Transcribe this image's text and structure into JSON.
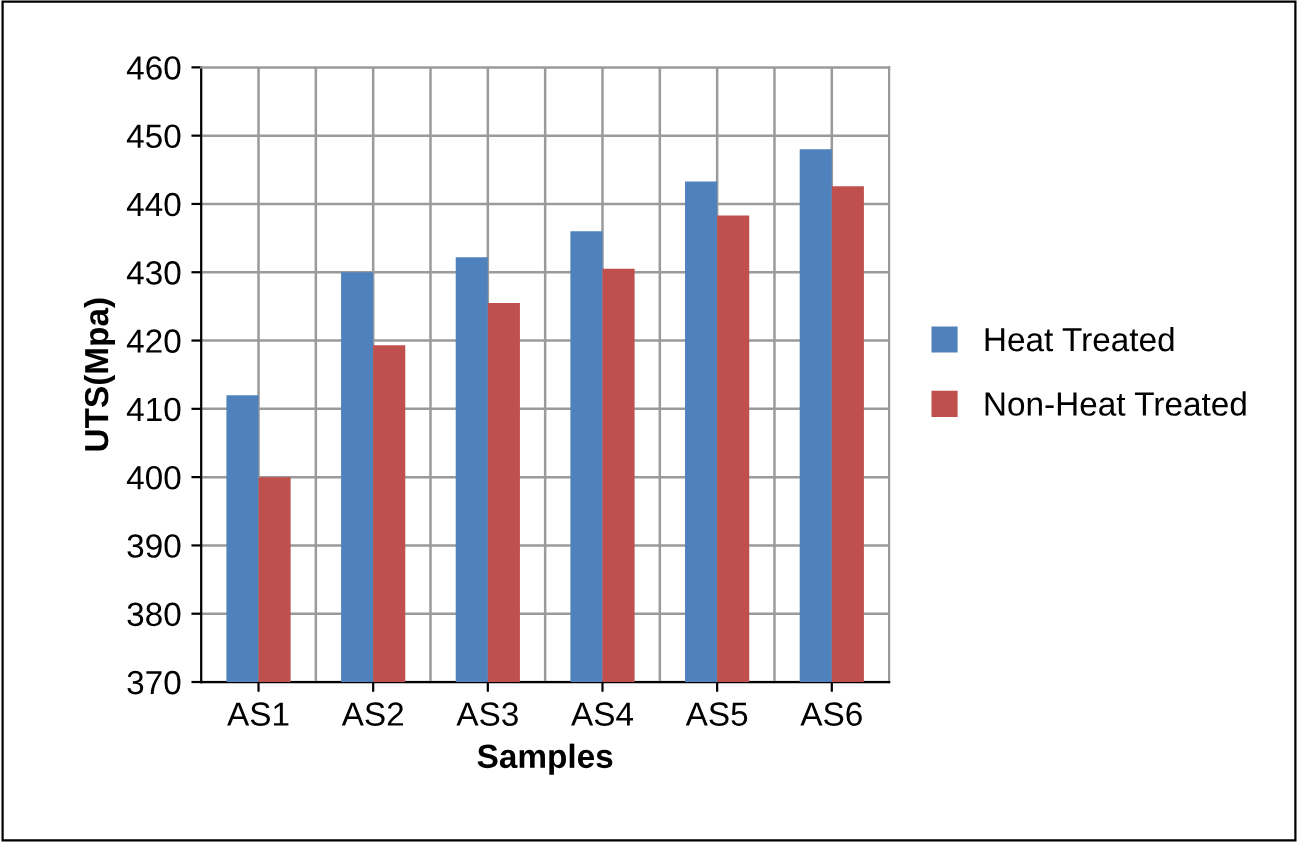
{
  "chart_data": {
    "type": "bar",
    "xlabel": "Samples",
    "ylabel": "UTS(Mpa)",
    "categories": [
      "AS1",
      "AS2",
      "AS3",
      "AS4",
      "AS5",
      "AS6"
    ],
    "series": [
      {
        "name": "Heat Treated",
        "color": "#4f81bd",
        "values": [
          412,
          430,
          432.2,
          436,
          443.3,
          448
        ]
      },
      {
        "name": "Non-Heat Treated",
        "color": "#c0504d",
        "values": [
          400,
          419.3,
          425.5,
          430.5,
          438.3,
          442.6
        ]
      }
    ],
    "ylim": [
      370,
      460
    ],
    "yticks": [
      370,
      380,
      390,
      400,
      410,
      420,
      430,
      440,
      450,
      460
    ],
    "grid": true,
    "legend": "right"
  }
}
